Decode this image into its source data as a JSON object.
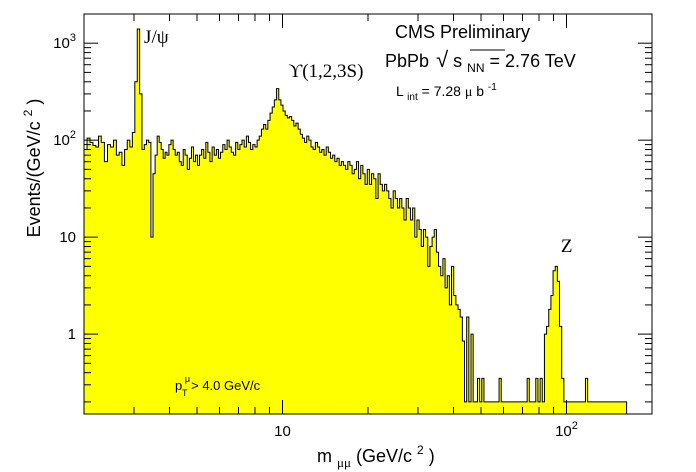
{
  "chart_data": {
    "type": "histogram",
    "title": "CMS Preliminary",
    "system_label": {
      "prefix": "PbPb",
      "sqrt_symbol": "√",
      "s": "s",
      "s_sub": "NN",
      "suffix": " = 2.76 TeV"
    },
    "lumi_label": {
      "L": "L",
      "L_sub": "int",
      "value": " = 7.28 ",
      "unit_mu": "μ",
      "unit_b": "b",
      "unit_sup": "-1"
    },
    "cut_label": {
      "p": "p",
      "p_sub": "T",
      "p_sup": "μ",
      "text": " > 4.0 GeV/c"
    },
    "xlabel": {
      "m": "m",
      "sub": "μμ",
      "text": " (GeV/c",
      "sup": "2",
      "close": ")"
    },
    "ylabel": {
      "text": "Events/(GeV/c",
      "sup": "2",
      "close": ")"
    },
    "x_scale": "log",
    "y_scale": "log",
    "xlim": [
      2,
      200
    ],
    "ylim": [
      0.15,
      2000
    ],
    "x_ticks": [
      {
        "value": 10,
        "label": "10",
        "sup": ""
      },
      {
        "value": 100,
        "label": "10",
        "sup": "2"
      }
    ],
    "y_ticks": [
      {
        "value": 1,
        "label": "1",
        "sup": ""
      },
      {
        "value": 10,
        "label": "10",
        "sup": ""
      },
      {
        "value": 100,
        "label": "10",
        "sup": "2"
      },
      {
        "value": 1000,
        "label": "10",
        "sup": "3"
      }
    ],
    "fill_color": "#ffff00",
    "line_color": "#000000",
    "annotations": [
      {
        "text": "J/ψ",
        "x": 3.1,
        "y": 1000
      },
      {
        "text": "ϒ(1,2,3S)",
        "x": 10.0,
        "y": 450
      },
      {
        "text": "Z",
        "x": 91.0,
        "y": 7.0
      }
    ],
    "bins": [
      [
        2.0,
        80
      ],
      [
        2.05,
        105
      ],
      [
        2.1,
        95
      ],
      [
        2.15,
        88
      ],
      [
        2.2,
        85
      ],
      [
        2.25,
        110
      ],
      [
        2.3,
        95
      ],
      [
        2.36,
        60
      ],
      [
        2.42,
        90
      ],
      [
        2.48,
        85
      ],
      [
        2.54,
        100
      ],
      [
        2.6,
        70
      ],
      [
        2.66,
        75
      ],
      [
        2.72,
        55
      ],
      [
        2.78,
        80
      ],
      [
        2.84,
        100
      ],
      [
        2.9,
        85
      ],
      [
        2.96,
        120
      ],
      [
        3.02,
        400
      ],
      [
        3.08,
        1400
      ],
      [
        3.14,
        300
      ],
      [
        3.2,
        80
      ],
      [
        3.26,
        90
      ],
      [
        3.32,
        100
      ],
      [
        3.38,
        95
      ],
      [
        3.44,
        10
      ],
      [
        3.5,
        45
      ],
      [
        3.56,
        70
      ],
      [
        3.62,
        110
      ],
      [
        3.68,
        95
      ],
      [
        3.74,
        80
      ],
      [
        3.8,
        65
      ],
      [
        3.86,
        75
      ],
      [
        3.92,
        70
      ],
      [
        3.98,
        90
      ],
      [
        4.05,
        100
      ],
      [
        4.12,
        80
      ],
      [
        4.19,
        70
      ],
      [
        4.26,
        75
      ],
      [
        4.33,
        60
      ],
      [
        4.4,
        55
      ],
      [
        4.47,
        80
      ],
      [
        4.54,
        70
      ],
      [
        4.62,
        50
      ],
      [
        4.7,
        65
      ],
      [
        4.78,
        85
      ],
      [
        4.86,
        60
      ],
      [
        4.94,
        70
      ],
      [
        5.02,
        55
      ],
      [
        5.1,
        70
      ],
      [
        5.19,
        80
      ],
      [
        5.28,
        65
      ],
      [
        5.37,
        95
      ],
      [
        5.46,
        75
      ],
      [
        5.55,
        60
      ],
      [
        5.65,
        85
      ],
      [
        5.75,
        70
      ],
      [
        5.85,
        80
      ],
      [
        5.95,
        65
      ],
      [
        6.05,
        75
      ],
      [
        6.16,
        90
      ],
      [
        6.27,
        80
      ],
      [
        6.38,
        100
      ],
      [
        6.49,
        85
      ],
      [
        6.6,
        75
      ],
      [
        6.72,
        70
      ],
      [
        6.84,
        95
      ],
      [
        6.96,
        80
      ],
      [
        7.08,
        90
      ],
      [
        7.2,
        100
      ],
      [
        7.33,
        85
      ],
      [
        7.46,
        110
      ],
      [
        7.59,
        95
      ],
      [
        7.72,
        80
      ],
      [
        7.86,
        90
      ],
      [
        8.0,
        85
      ],
      [
        8.14,
        100
      ],
      [
        8.28,
        110
      ],
      [
        8.43,
        130
      ],
      [
        8.58,
        145
      ],
      [
        8.73,
        130
      ],
      [
        8.88,
        160
      ],
      [
        9.04,
        190
      ],
      [
        9.2,
        220
      ],
      [
        9.36,
        260
      ],
      [
        9.53,
        340
      ],
      [
        9.7,
        260
      ],
      [
        9.87,
        230
      ],
      [
        10.04,
        200
      ],
      [
        10.22,
        180
      ],
      [
        10.4,
        170
      ],
      [
        10.58,
        175
      ],
      [
        10.77,
        160
      ],
      [
        10.96,
        140
      ],
      [
        11.15,
        150
      ],
      [
        11.35,
        130
      ],
      [
        11.55,
        115
      ],
      [
        11.75,
        105
      ],
      [
        11.96,
        95
      ],
      [
        12.17,
        110
      ],
      [
        12.38,
        100
      ],
      [
        12.6,
        85
      ],
      [
        12.82,
        80
      ],
      [
        13.05,
        95
      ],
      [
        13.28,
        85
      ],
      [
        13.51,
        75
      ],
      [
        13.75,
        80
      ],
      [
        14.0,
        70
      ],
      [
        14.25,
        85
      ],
      [
        14.5,
        75
      ],
      [
        14.76,
        65
      ],
      [
        15.02,
        70
      ],
      [
        15.28,
        60
      ],
      [
        15.55,
        65
      ],
      [
        15.83,
        55
      ],
      [
        16.11,
        60
      ],
      [
        16.39,
        55
      ],
      [
        16.68,
        50
      ],
      [
        16.98,
        60
      ],
      [
        17.28,
        55
      ],
      [
        17.58,
        45
      ],
      [
        17.89,
        50
      ],
      [
        18.21,
        60
      ],
      [
        18.53,
        40
      ],
      [
        18.86,
        55
      ],
      [
        19.19,
        45
      ],
      [
        19.53,
        35
      ],
      [
        19.88,
        50
      ],
      [
        20.23,
        35
      ],
      [
        20.58,
        45
      ],
      [
        20.95,
        40
      ],
      [
        21.32,
        25
      ],
      [
        21.7,
        45
      ],
      [
        22.08,
        35
      ],
      [
        22.47,
        30
      ],
      [
        22.87,
        35
      ],
      [
        23.27,
        30
      ],
      [
        23.68,
        25
      ],
      [
        24.1,
        20
      ],
      [
        24.53,
        30
      ],
      [
        24.96,
        25
      ],
      [
        25.4,
        20
      ],
      [
        25.85,
        25
      ],
      [
        26.31,
        20
      ],
      [
        26.77,
        15
      ],
      [
        27.25,
        25
      ],
      [
        27.73,
        20
      ],
      [
        28.22,
        15
      ],
      [
        28.72,
        20
      ],
      [
        29.23,
        10
      ],
      [
        29.74,
        15
      ],
      [
        30.27,
        12
      ],
      [
        30.8,
        8
      ],
      [
        31.35,
        12
      ],
      [
        31.9,
        10
      ],
      [
        32.47,
        5
      ],
      [
        33.04,
        8
      ],
      [
        33.63,
        10
      ],
      [
        34.22,
        12
      ],
      [
        34.83,
        7
      ],
      [
        35.44,
        5
      ],
      [
        36.07,
        4
      ],
      [
        36.71,
        6
      ],
      [
        37.36,
        3
      ],
      [
        38.02,
        4
      ],
      [
        38.69,
        2
      ],
      [
        39.37,
        5
      ],
      [
        40.07,
        2.5
      ],
      [
        40.78,
        2
      ],
      [
        41.5,
        1.8
      ],
      [
        42.23,
        1.5
      ],
      [
        42.98,
        0.85
      ],
      [
        43.74,
        0.2
      ],
      [
        44.51,
        1.5
      ],
      [
        45.3,
        0.2
      ],
      [
        46.1,
        1
      ],
      [
        46.91,
        0.2
      ],
      [
        47.74,
        0.2
      ],
      [
        48.59,
        0.35
      ],
      [
        49.45,
        0.2
      ],
      [
        50.32,
        0.35
      ],
      [
        51.21,
        0.2
      ],
      [
        52.11,
        0.2
      ],
      [
        53.03,
        0.2
      ],
      [
        53.97,
        0.2
      ],
      [
        54.92,
        0.2
      ],
      [
        55.89,
        0.2
      ],
      [
        56.88,
        0.2
      ],
      [
        57.88,
        0.35
      ],
      [
        58.9,
        0.2
      ],
      [
        59.95,
        0.2
      ],
      [
        61.0,
        0.2
      ],
      [
        62.08,
        0.2
      ],
      [
        63.18,
        0.2
      ],
      [
        64.29,
        0.2
      ],
      [
        65.43,
        0.2
      ],
      [
        66.59,
        0.2
      ],
      [
        67.76,
        0.2
      ],
      [
        68.96,
        0.2
      ],
      [
        70.18,
        0.2
      ],
      [
        71.42,
        0.2
      ],
      [
        72.68,
        0.35
      ],
      [
        73.96,
        0.2
      ],
      [
        75.27,
        0.2
      ],
      [
        76.6,
        0.2
      ],
      [
        77.95,
        0.35
      ],
      [
        79.33,
        0.2
      ],
      [
        80.73,
        0.35
      ],
      [
        82.16,
        0.2
      ],
      [
        83.61,
        1
      ],
      [
        85.08,
        1.2
      ],
      [
        86.59,
        1.8
      ],
      [
        88.12,
        2.5
      ],
      [
        89.67,
        4.5
      ],
      [
        91.26,
        5
      ],
      [
        92.87,
        3.5
      ],
      [
        94.51,
        1.2
      ],
      [
        96.18,
        0.35
      ],
      [
        97.88,
        0.2
      ],
      [
        99.61,
        0.2
      ],
      [
        101.4,
        0.2
      ],
      [
        103.2,
        0.2
      ],
      [
        105.0,
        0.2
      ],
      [
        106.8,
        0.2
      ],
      [
        108.7,
        0.2
      ],
      [
        110.6,
        0.2
      ],
      [
        112.6,
        0.2
      ],
      [
        114.6,
        0.2
      ],
      [
        116.6,
        0.35
      ],
      [
        118.7,
        0.2
      ],
      [
        120.8,
        0.2
      ],
      [
        122.9,
        0.2
      ],
      [
        125.1,
        0.2
      ],
      [
        127.3,
        0.2
      ],
      [
        129.6,
        0.2
      ],
      [
        131.8,
        0.2
      ],
      [
        134.2,
        0.2
      ],
      [
        136.5,
        0.2
      ],
      [
        139.0,
        0.2
      ],
      [
        141.4,
        0.2
      ],
      [
        143.9,
        0.2
      ],
      [
        146.5,
        0.2
      ],
      [
        149.1,
        0.2
      ],
      [
        151.8,
        0.2
      ],
      [
        154.5,
        0.2
      ],
      [
        157.2,
        0.2
      ],
      [
        160.0,
        0.2
      ]
    ]
  }
}
